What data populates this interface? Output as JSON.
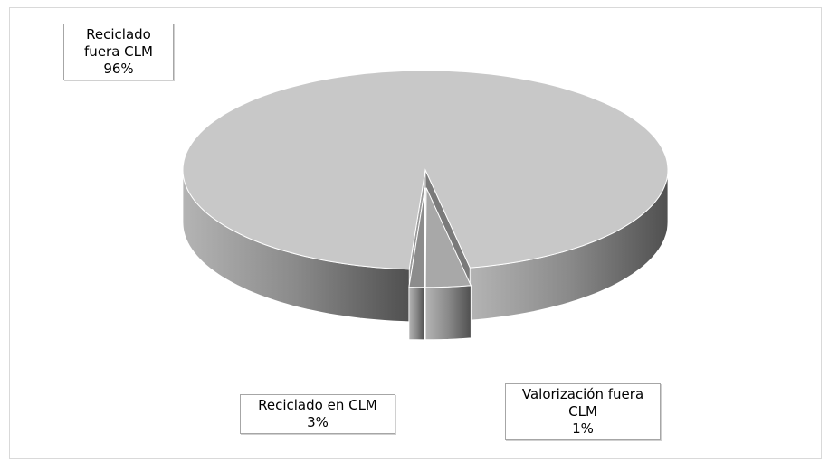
{
  "chart_data": {
    "type": "pie",
    "categories": [
      "Reciclado fuera CLM",
      "Reciclado en CLM",
      "Valorización fuera CLM"
    ],
    "values": [
      96,
      3,
      1
    ],
    "value_labels": [
      "96%",
      "3%",
      "1%"
    ],
    "colors": [
      "#c8c8c8",
      "#a8a8a8",
      "#8c8c8c"
    ]
  }
}
